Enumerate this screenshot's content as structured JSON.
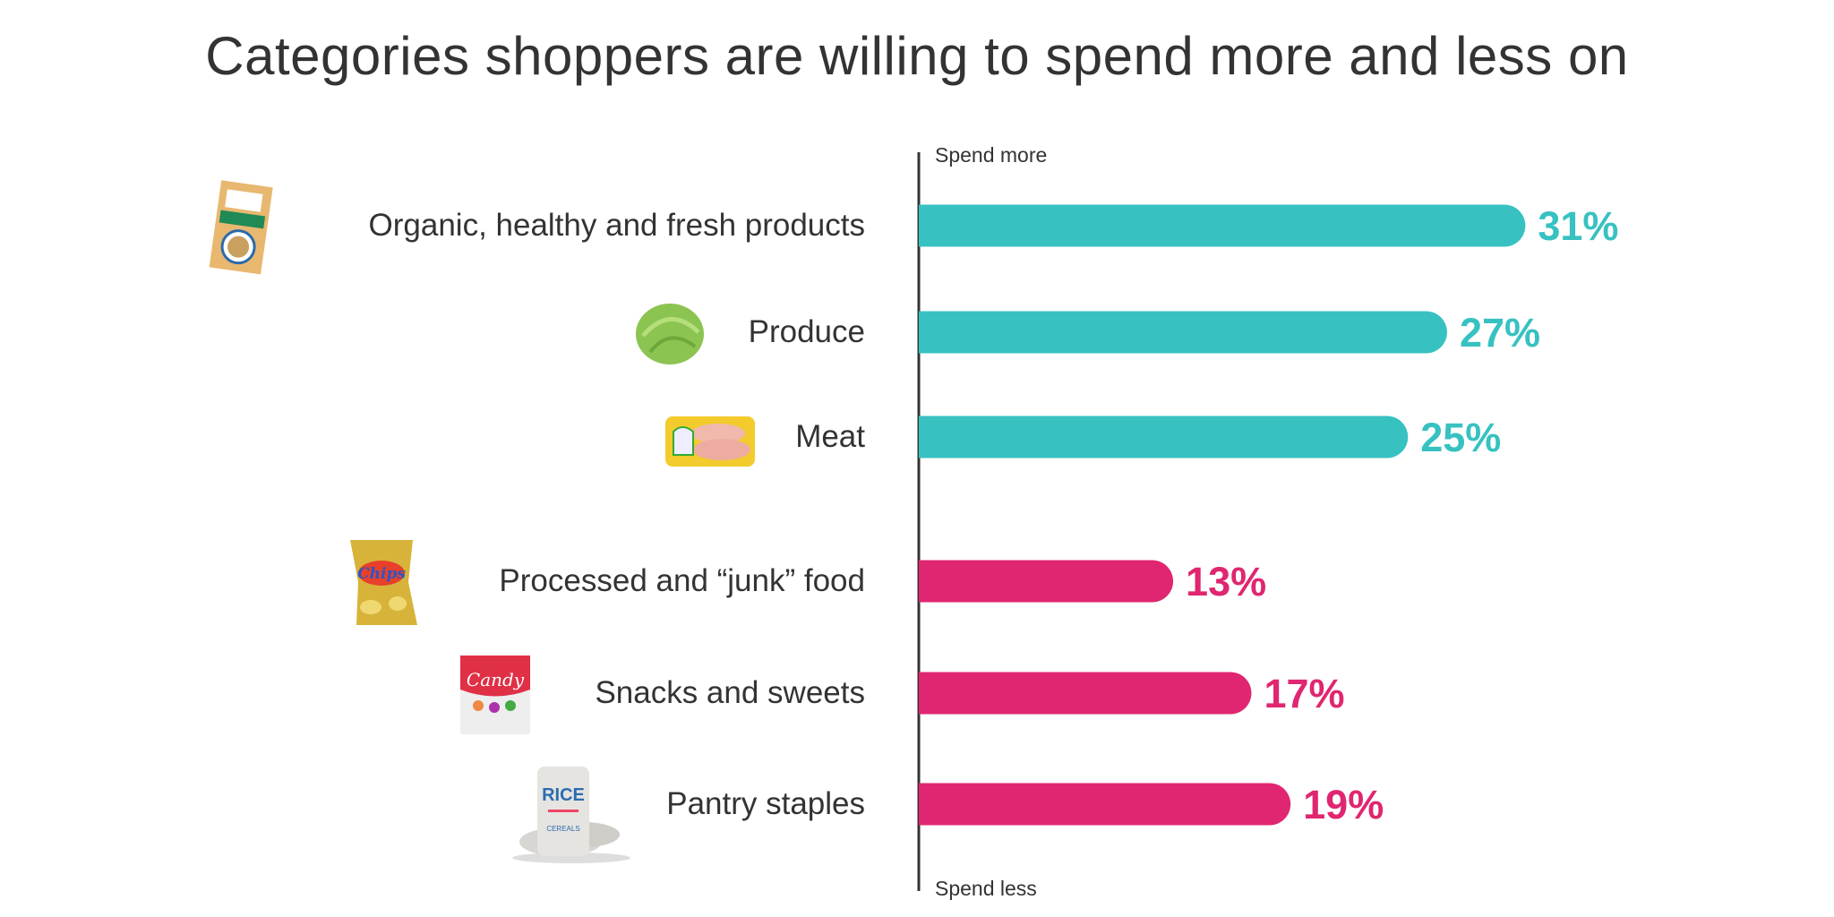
{
  "chart_data": {
    "type": "bar",
    "orientation": "horizontal",
    "title": "Categories shoppers are willing to spend more and less on",
    "axis_top_label": "Spend more",
    "axis_bottom_label": "Spend less",
    "categories": [
      "Organic, healthy and fresh products",
      "Produce",
      "Meat",
      "Processed and “junk” food",
      "Snacks and sweets",
      "Pantry staples"
    ],
    "values": [
      31,
      27,
      25,
      13,
      17,
      19
    ],
    "value_labels": [
      "31%",
      "27%",
      "25%",
      "13%",
      "17%",
      "19%"
    ],
    "groups": [
      "Spend more",
      "Spend more",
      "Spend more",
      "Spend less",
      "Spend less",
      "Spend less"
    ],
    "icons": [
      "cereal-box-icon",
      "lettuce-icon",
      "meat-tray-icon",
      "chips-bag-icon",
      "candy-bag-icon",
      "rice-sack-icon"
    ],
    "unit": "%",
    "grid": false,
    "colors": {
      "Spend more": "#38c1c1",
      "Spend less": "#e02670",
      "text": "#333333",
      "axis": "#333333"
    }
  }
}
